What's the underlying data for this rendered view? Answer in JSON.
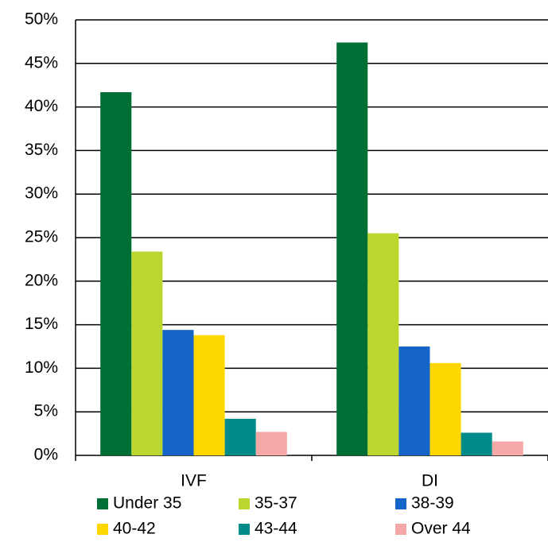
{
  "chart_data": {
    "type": "bar",
    "categories": [
      "IVF",
      "DI"
    ],
    "series": [
      {
        "name": "Under 35",
        "color": "#006f35",
        "values": [
          41.7,
          47.4
        ]
      },
      {
        "name": "35-37",
        "color": "#bcd630",
        "values": [
          23.4,
          25.5
        ]
      },
      {
        "name": "38-39",
        "color": "#1565c8",
        "values": [
          14.4,
          12.5
        ]
      },
      {
        "name": "40-42",
        "color": "#ffd700",
        "values": [
          13.8,
          10.6
        ]
      },
      {
        "name": "43-44",
        "color": "#008b8b",
        "values": [
          4.2,
          2.6
        ]
      },
      {
        "name": "Over 44",
        "color": "#f4a9a8",
        "values": [
          2.7,
          1.6
        ]
      }
    ],
    "ylim": [
      0,
      50
    ],
    "yticks": [
      {
        "value": 0,
        "label": "0%"
      },
      {
        "value": 5,
        "label": "5%"
      },
      {
        "value": 10,
        "label": "10%"
      },
      {
        "value": 15,
        "label": "15%"
      },
      {
        "value": 20,
        "label": "20%"
      },
      {
        "value": 25,
        "label": "25%"
      },
      {
        "value": 30,
        "label": "30%"
      },
      {
        "value": 35,
        "label": "35%"
      },
      {
        "value": 40,
        "label": "40%"
      },
      {
        "value": 45,
        "label": "45%"
      },
      {
        "value": 50,
        "label": "50%"
      }
    ],
    "grid": true,
    "legend": "bottom"
  }
}
